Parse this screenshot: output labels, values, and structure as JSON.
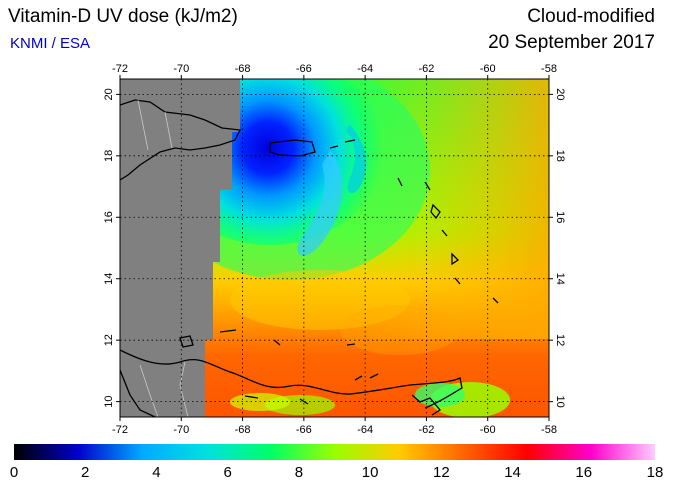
{
  "header": {
    "title": "Vitamin-D UV dose (kJ/m2)",
    "organization": "KNMI / ESA",
    "product": "Cloud-modified",
    "date": "20 September 2017"
  },
  "map": {
    "region": "Caribbean",
    "lon_range": [
      -72,
      -58
    ],
    "lat_range": [
      9.5,
      20.5
    ],
    "lon_ticks": [
      "-72",
      "-70",
      "-68",
      "-66",
      "-64",
      "-62",
      "-60",
      "-58"
    ],
    "lat_ticks": [
      "10",
      "12",
      "14",
      "16",
      "18",
      "20"
    ],
    "lon_tick_values": [
      -72,
      -70,
      -68,
      -66,
      -64,
      -62,
      -60,
      -58
    ],
    "lat_tick_values": [
      10,
      12,
      14,
      16,
      18,
      20
    ],
    "no_data_color": "#808080",
    "grid": "dotted"
  },
  "colorbar": {
    "labels": [
      "0",
      "2",
      "4",
      "6",
      "8",
      "10",
      "12",
      "14",
      "16",
      "18"
    ],
    "range": [
      0,
      18
    ],
    "colors": [
      "#000000",
      "#0000cc",
      "#00aaff",
      "#00e0e0",
      "#00ff66",
      "#99ff00",
      "#ffcc00",
      "#ff6600",
      "#ff0000",
      "#ff00cc",
      "#ffccff"
    ]
  }
}
